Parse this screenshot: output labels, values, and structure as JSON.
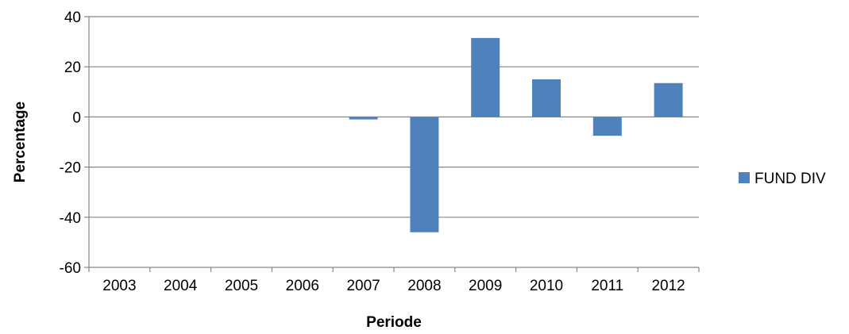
{
  "chart_data": {
    "type": "bar",
    "title": "",
    "xlabel": "Periode",
    "ylabel": "Percentage",
    "categories": [
      "2003",
      "2004",
      "2005",
      "2006",
      "2007",
      "2008",
      "2009",
      "2010",
      "2011",
      "2012"
    ],
    "series": [
      {
        "name": "FUND DIV",
        "color": "#4F81BD",
        "values": [
          0,
          0,
          0,
          0,
          -1,
          -46,
          31.5,
          15,
          -7.5,
          13.5
        ]
      }
    ],
    "ylim": [
      -60,
      40
    ],
    "yticks": [
      -60,
      -40,
      -20,
      0,
      20,
      40
    ],
    "grid": true,
    "legend": "right"
  }
}
